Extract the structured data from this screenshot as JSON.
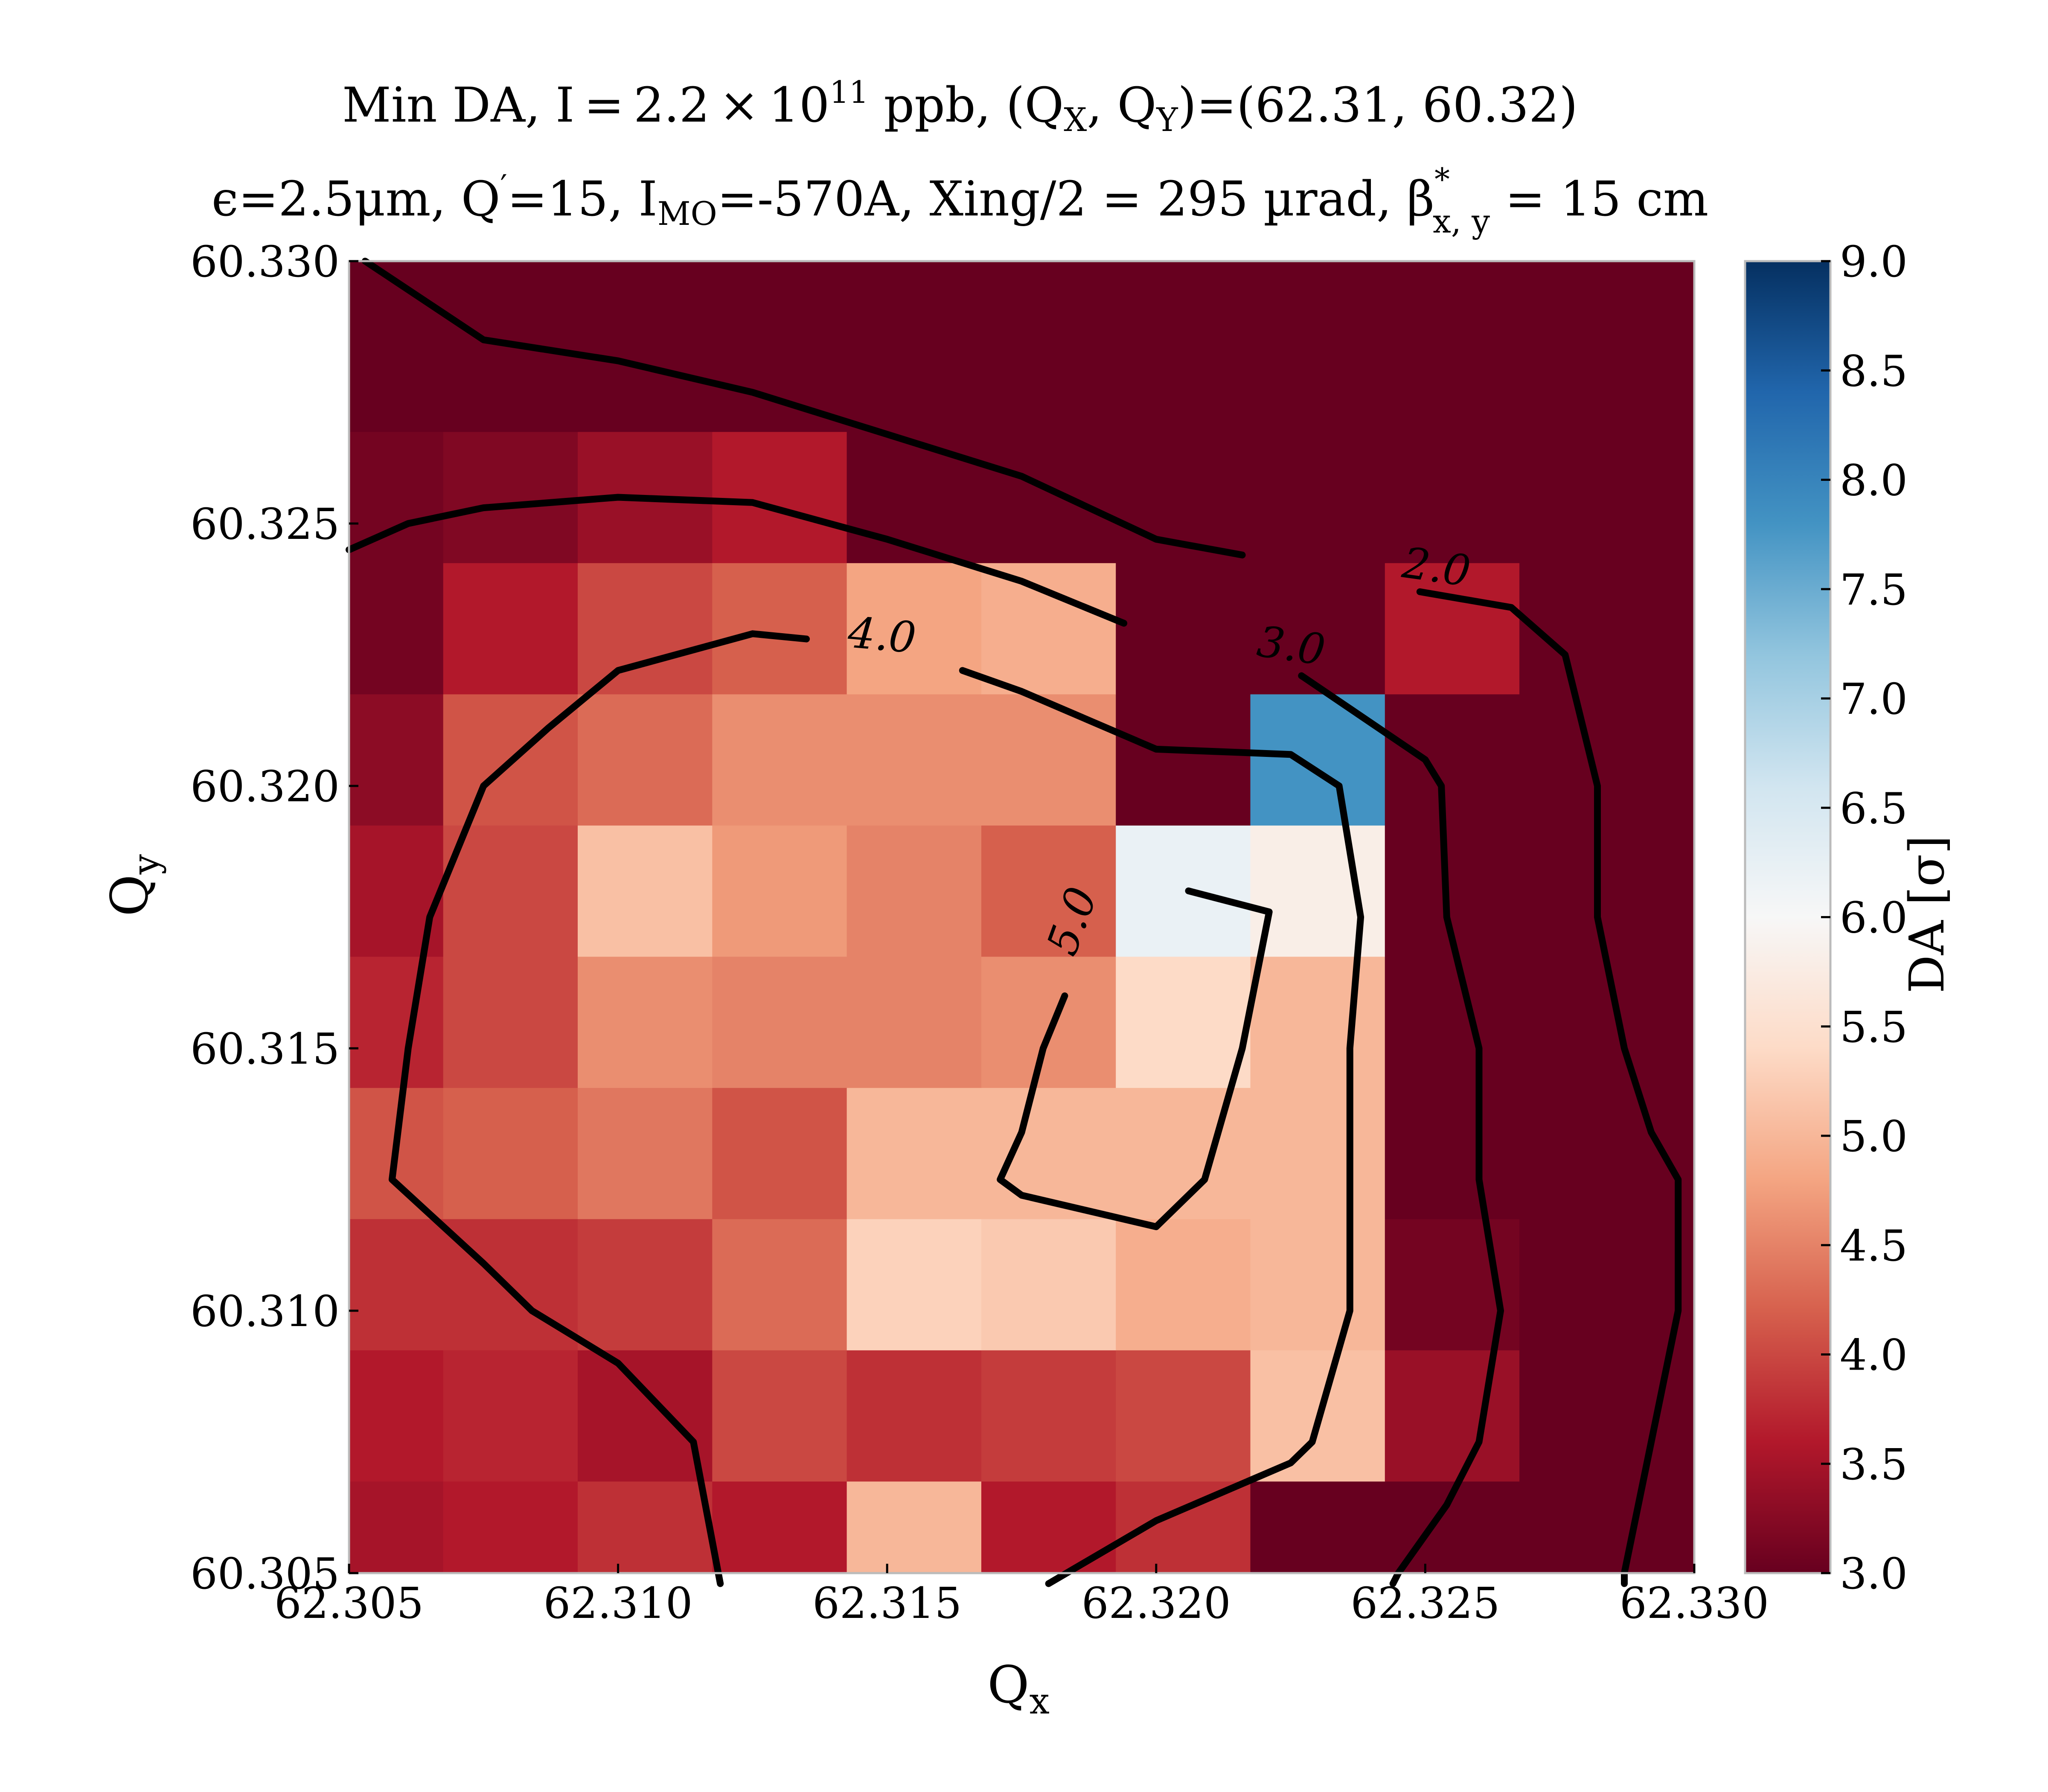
{
  "chart_data": {
    "type": "heatmap",
    "title_line1": {
      "pre": "Min DA, I = 2.2 × 10",
      "exp": "11",
      "post": " ppb, (Q",
      "s1": "X",
      "mid": ", Q",
      "s2": "Y",
      "end": ")=(62.31, 60.32)"
    },
    "title_line2": {
      "p1": "ϵ=2.5μm, Q",
      "prime": "′",
      "p2": "=15, I",
      "s1": "MO",
      "p3": "=-570A, Xing/2 = 295 µrad, β",
      "star": "*",
      "s2": "x, y",
      "p4": " = 15 cm"
    },
    "xlabel": {
      "main": "Q",
      "sub": "x"
    },
    "ylabel": {
      "main": "Q",
      "sub": "y"
    },
    "xlim": [
      62.305,
      62.33
    ],
    "ylim": [
      60.305,
      60.33
    ],
    "xticks": [
      62.305,
      62.31,
      62.315,
      62.32,
      62.325,
      62.33
    ],
    "xtick_labels": [
      "62.305",
      "62.310",
      "62.315",
      "62.320",
      "62.325",
      "62.330"
    ],
    "yticks": [
      60.305,
      60.31,
      60.315,
      60.32,
      60.325,
      60.33
    ],
    "ytick_labels": [
      "60.305",
      "60.310",
      "60.315",
      "60.320",
      "60.325",
      "60.330"
    ],
    "colorbar": {
      "label": "DA [σ]",
      "min": 3.0,
      "max": 9.0,
      "ticks": [
        3.0,
        3.5,
        4.0,
        4.5,
        5.0,
        5.5,
        6.0,
        6.5,
        7.0,
        7.5,
        8.0,
        8.5,
        9.0
      ],
      "tick_labels": [
        "3.0",
        "3.5",
        "4.0",
        "4.5",
        "5.0",
        "5.5",
        "6.0",
        "6.5",
        "7.0",
        "7.5",
        "8.0",
        "8.5",
        "9.0"
      ],
      "cmap": "RdBu",
      "colors": [
        "#67001f",
        "#b2182b",
        "#d6604d",
        "#f4a582",
        "#fddbc7",
        "#f7f7f7",
        "#d1e5f0",
        "#92c5de",
        "#4393c3",
        "#2166ac",
        "#053061"
      ]
    },
    "grid": false,
    "cells_x": [
      62.3055,
      62.308,
      62.3105,
      62.313,
      62.3155,
      62.318,
      62.3205,
      62.323,
      62.3255,
      62.328
    ],
    "cells_y": [
      60.3055,
      60.308,
      60.3105,
      60.313,
      60.3155,
      60.318,
      60.3205,
      60.323,
      60.3255,
      60.328
    ],
    "z": [
      [
        3.5,
        3.6,
        3.8,
        3.6,
        5.0,
        3.6,
        3.8,
        3.0,
        3.0,
        3.0
      ],
      [
        3.6,
        3.7,
        3.5,
        4.0,
        3.8,
        3.9,
        4.0,
        5.1,
        3.4,
        3.0
      ],
      [
        3.8,
        3.8,
        3.9,
        4.3,
        5.3,
        5.2,
        4.9,
        5.0,
        3.1,
        3.0
      ],
      [
        4.1,
        4.2,
        4.4,
        4.1,
        5.0,
        5.0,
        5.0,
        5.0,
        3.0,
        3.0
      ],
      [
        3.7,
        4.0,
        4.6,
        4.5,
        4.5,
        4.6,
        5.4,
        5.0,
        3.0,
        3.0
      ],
      [
        3.5,
        4.0,
        5.1,
        4.7,
        4.5,
        4.2,
        6.2,
        5.8,
        3.0,
        3.0
      ],
      [
        3.3,
        4.1,
        4.3,
        4.6,
        4.6,
        4.6,
        3.0,
        7.8,
        3.0,
        3.0
      ],
      [
        3.1,
        3.6,
        4.0,
        4.2,
        4.8,
        4.9,
        3.0,
        3.0,
        3.6,
        3.0
      ],
      [
        3.1,
        3.2,
        3.4,
        3.6,
        3.0,
        3.0,
        3.0,
        3.0,
        3.0,
        3.0
      ],
      [
        3.0,
        3.0,
        3.0,
        3.0,
        3.0,
        3.0,
        3.0,
        3.0,
        3.0,
        3.0
      ]
    ],
    "contours": [
      {
        "level": 2.0,
        "label": "2.0",
        "label_at": [
          62.3252,
          60.3241
        ],
        "label_angle": 8,
        "segments": [
          [
            [
              62.3053,
              60.33
            ],
            [
              62.3075,
              60.3285
            ],
            [
              62.31,
              60.3281
            ],
            [
              62.3125,
              60.3275
            ],
            [
              62.315,
              60.3267
            ],
            [
              62.3175,
              60.3259
            ],
            [
              62.32,
              60.3247
            ],
            [
              62.3216,
              60.3244
            ]
          ],
          [
            [
              62.3249,
              60.3237
            ],
            [
              62.3266,
              60.3234
            ],
            [
              62.3276,
              60.3225
            ],
            [
              62.3282,
              60.32
            ],
            [
              62.3282,
              60.3175
            ],
            [
              62.3287,
              60.315
            ],
            [
              62.3292,
              60.3134
            ],
            [
              62.3297,
              60.3125
            ],
            [
              62.3297,
              60.31
            ],
            [
              62.3292,
              60.3075
            ],
            [
              62.3287,
              60.305
            ],
            [
              62.3287,
              60.3048
            ]
          ]
        ]
      },
      {
        "level": 3.0,
        "label": "3.0",
        "label_at": [
          62.3225,
          60.3226
        ],
        "label_angle": 8,
        "segments": [
          [
            [
              62.305,
              60.3245
            ],
            [
              62.3061,
              60.325
            ],
            [
              62.3075,
              60.3253
            ],
            [
              62.31,
              60.3255
            ],
            [
              62.3125,
              60.3254
            ],
            [
              62.315,
              60.3247
            ],
            [
              62.3175,
              60.3239
            ],
            [
              62.3194,
              60.3231
            ]
          ],
          [
            [
              62.3227,
              60.3221
            ],
            [
              62.325,
              60.3205
            ],
            [
              62.3253,
              60.32
            ],
            [
              62.3254,
              60.3175
            ],
            [
              62.326,
              60.315
            ],
            [
              62.326,
              60.3125
            ],
            [
              62.3264,
              60.31
            ],
            [
              62.326,
              60.3075
            ],
            [
              62.3254,
              60.3063
            ],
            [
              62.3245,
              60.305
            ],
            [
              62.3244,
              60.3048
            ]
          ]
        ]
      },
      {
        "level": 4.0,
        "label": "4.0",
        "label_at": [
          62.3149,
          60.3228
        ],
        "label_angle": 5,
        "segments": [
          [
            [
              62.3135,
              60.3228
            ],
            [
              62.3125,
              60.3229
            ],
            [
              62.31,
              60.3222
            ],
            [
              62.3087,
              60.3211
            ],
            [
              62.3075,
              60.32
            ],
            [
              62.3065,
              60.3175
            ],
            [
              62.3061,
              60.315
            ],
            [
              62.3058,
              60.3125
            ],
            [
              62.3075,
              60.3109
            ],
            [
              62.3084,
              60.31
            ],
            [
              62.31,
              60.309
            ],
            [
              62.3114,
              60.3075
            ],
            [
              62.3119,
              60.3048
            ]
          ],
          [
            [
              62.3164,
              60.3222
            ],
            [
              62.3175,
              60.3218
            ],
            [
              62.32,
              60.3207
            ],
            [
              62.3225,
              60.3206
            ],
            [
              62.3234,
              60.32
            ],
            [
              62.3238,
              60.3175
            ],
            [
              62.3236,
              60.315
            ],
            [
              62.3236,
              60.3125
            ],
            [
              62.3236,
              60.31
            ],
            [
              62.3229,
              60.3075
            ],
            [
              62.3225,
              60.3071
            ],
            [
              62.32,
              60.306
            ],
            [
              62.318,
              60.3048
            ]
          ]
        ]
      },
      {
        "level": 5.0,
        "label": "5.0",
        "label_at": [
          62.3185,
          60.3174
        ],
        "label_angle": -70,
        "segments": [
          [
            [
              62.3206,
              60.318
            ],
            [
              62.3221,
              60.3176
            ],
            [
              62.3216,
              60.315
            ],
            [
              62.3209,
              60.3125
            ],
            [
              62.32,
              60.3116
            ],
            [
              62.3175,
              60.3122
            ],
            [
              62.3171,
              60.3125
            ],
            [
              62.3175,
              60.3134
            ],
            [
              62.3179,
              60.315
            ],
            [
              62.3183,
              60.316
            ]
          ]
        ]
      }
    ]
  }
}
